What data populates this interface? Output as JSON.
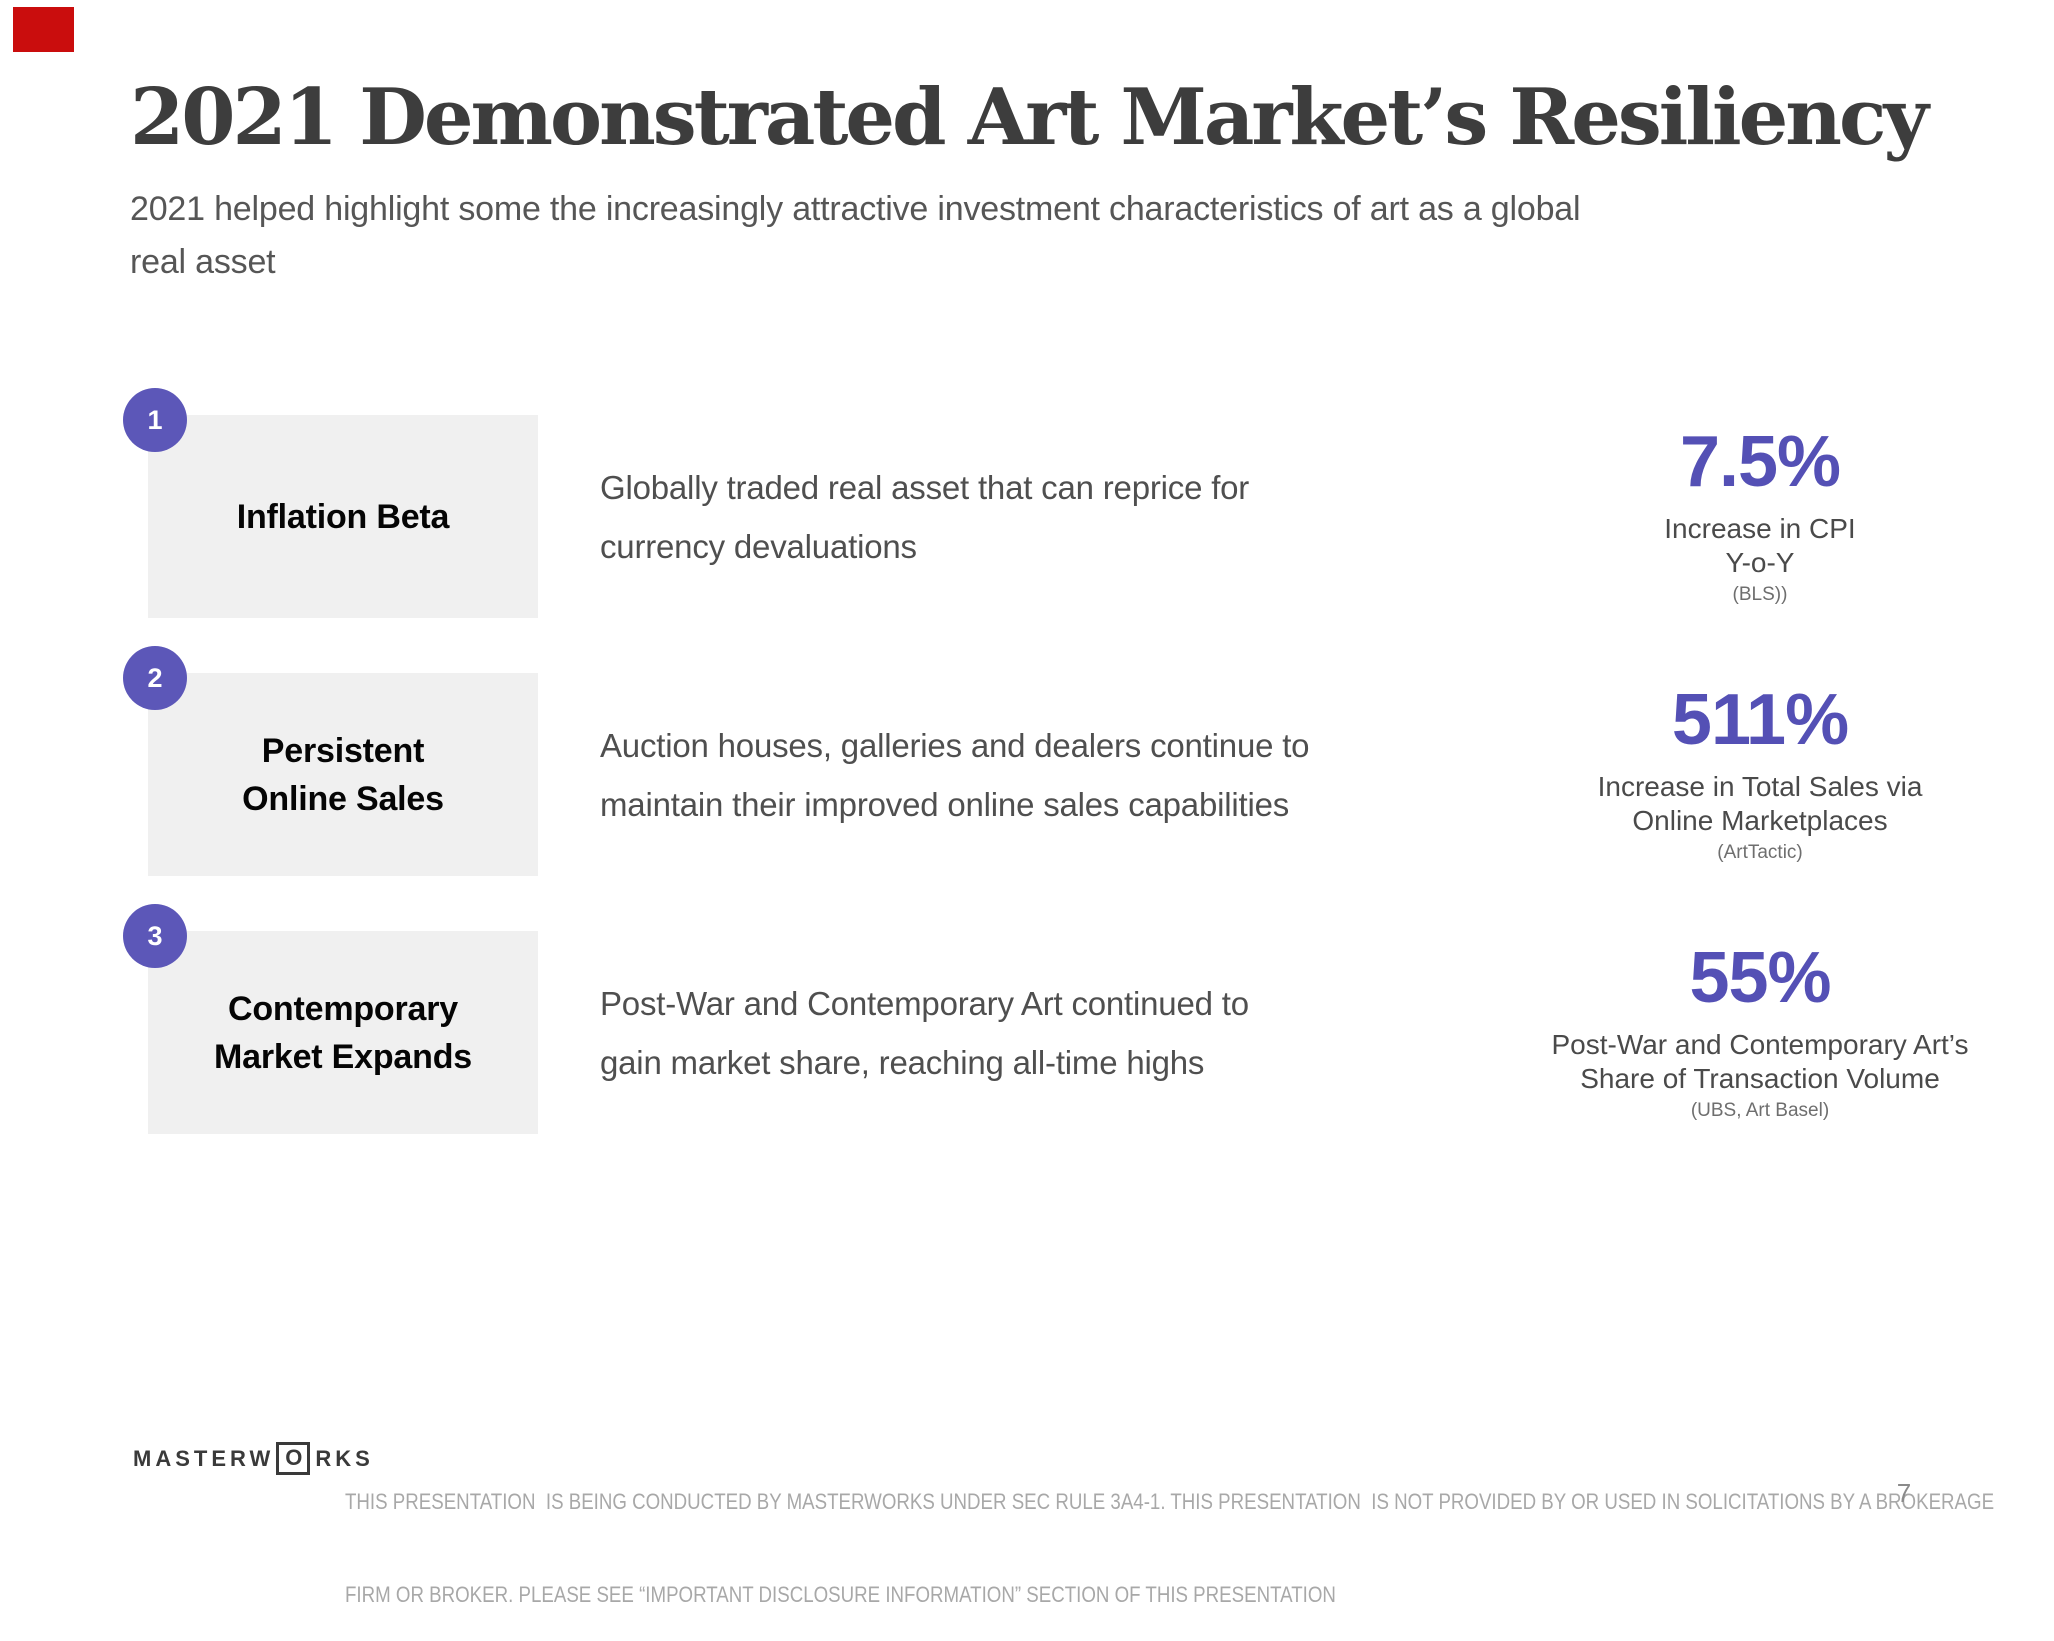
{
  "annotation": {
    "red_marker_color": "#ca0d0d"
  },
  "header": {
    "title": "2021 Demonstrated Art Market’s Resiliency",
    "subtitle_lines": [
      "2021 helped highlight some the increasingly attractive investment characteristics of art as a global",
      "real asset"
    ]
  },
  "rows": [
    {
      "number": "1",
      "label_lines": [
        "Inflation Beta"
      ],
      "desc_lines": [
        "Globally traded real asset that can reprice for",
        "currency devaluations"
      ],
      "stat_value": "7.5%",
      "stat_caption_lines": [
        "Increase in CPI",
        "Y-o-Y"
      ],
      "stat_source": "(BLS))"
    },
    {
      "number": "2",
      "label_lines": [
        "Persistent",
        "Online Sales"
      ],
      "desc_lines": [
        "Auction houses, galleries and dealers continue to",
        "maintain their improved online sales capabilities"
      ],
      "stat_value": "511%",
      "stat_caption_lines": [
        "Increase in Total Sales via",
        "Online Marketplaces"
      ],
      "stat_source": "(ArtTactic)"
    },
    {
      "number": "3",
      "label_lines": [
        "Contemporary",
        "Market Expands"
      ],
      "desc_lines": [
        "Post-War and Contemporary Art continued to",
        "gain market share, reaching all-time highs"
      ],
      "stat_value": "55%",
      "stat_caption_lines": [
        "Post-War and Contemporary Art’s",
        "Share of Transaction Volume"
      ],
      "stat_source": "(UBS, Art Basel)"
    }
  ],
  "footer": {
    "logo": {
      "part1": "MASTERW",
      "boxed_letter": "O",
      "part2": "RKS"
    },
    "disclaimer_lines": [
      "THIS PRESENTATION  IS BEING CONDUCTED BY MASTERWORKS UNDER SEC RULE 3A4-1. THIS PRESENTATION  IS NOT PROVIDED BY OR USED IN SOLICITATIONS BY A BROKERAGE",
      "FIRM OR BROKER. PLEASE SEE “IMPORTANT DISCLOSURE INFORMATION” SECTION OF THIS PRESENTATION"
    ],
    "page_number": "7"
  },
  "colors": {
    "accent_purple": "#5450b5",
    "badge_purple": "#5c57b8",
    "box_gray": "#f0f0f0",
    "title_gray": "#3d3d3d",
    "body_gray": "#4f4f4f",
    "footer_gray": "#a8a8a8",
    "red_marker": "#ca0d0d"
  }
}
